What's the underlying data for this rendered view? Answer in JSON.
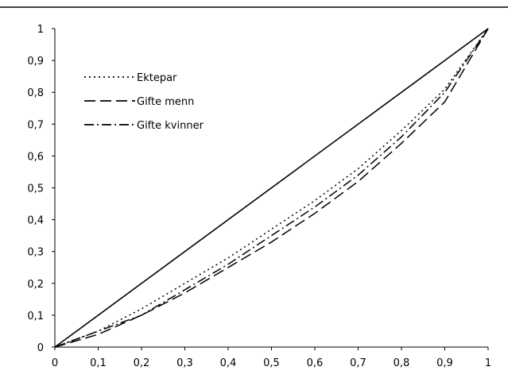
{
  "chart_data": {
    "type": "line",
    "title": "",
    "xlabel": "",
    "ylabel": "",
    "xlim": [
      0,
      1
    ],
    "ylim": [
      0,
      1
    ],
    "x_ticks": [
      "0",
      "0,1",
      "0,2",
      "0,3",
      "0,4",
      "0,5",
      "0,6",
      "0,7",
      "0,8",
      "0,9",
      "1"
    ],
    "y_ticks": [
      "0",
      "0,1",
      "0,2",
      "0,3",
      "0,4",
      "0,5",
      "0,6",
      "0,7",
      "0,8",
      "0,9",
      "1"
    ],
    "grid": false,
    "legend_position": "top-left",
    "equality_line": {
      "x": [
        0,
        1
      ],
      "y": [
        0,
        1
      ]
    },
    "series": [
      {
        "name": "Ektepar",
        "style": "dotted",
        "x": [
          0,
          0.1,
          0.2,
          0.3,
          0.4,
          0.5,
          0.6,
          0.7,
          0.8,
          0.9,
          1
        ],
        "y": [
          0,
          0.05,
          0.12,
          0.2,
          0.28,
          0.37,
          0.46,
          0.56,
          0.68,
          0.81,
          1
        ]
      },
      {
        "name": "Gifte menn",
        "style": "dashed",
        "x": [
          0,
          0.1,
          0.2,
          0.3,
          0.4,
          0.5,
          0.6,
          0.7,
          0.8,
          0.9,
          1
        ],
        "y": [
          0,
          0.04,
          0.1,
          0.17,
          0.25,
          0.33,
          0.42,
          0.52,
          0.64,
          0.77,
          1
        ]
      },
      {
        "name": "Gifte kvinner",
        "style": "dashdot",
        "x": [
          0,
          0.1,
          0.2,
          0.3,
          0.4,
          0.5,
          0.6,
          0.7,
          0.8,
          0.9,
          1
        ],
        "y": [
          0,
          0.05,
          0.1,
          0.18,
          0.26,
          0.35,
          0.44,
          0.54,
          0.66,
          0.8,
          1
        ]
      }
    ]
  }
}
